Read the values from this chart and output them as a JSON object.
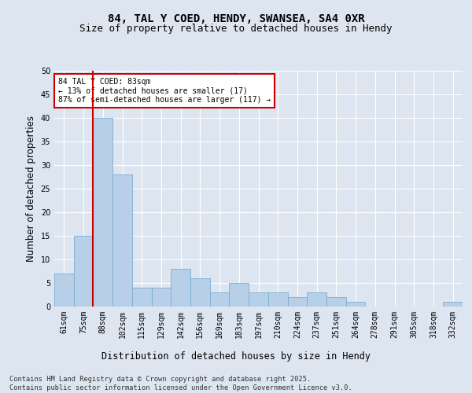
{
  "title_line1": "84, TAL Y COED, HENDY, SWANSEA, SA4 0XR",
  "title_line2": "Size of property relative to detached houses in Hendy",
  "xlabel": "Distribution of detached houses by size in Hendy",
  "ylabel": "Number of detached properties",
  "categories": [
    "61sqm",
    "75sqm",
    "88sqm",
    "102sqm",
    "115sqm",
    "129sqm",
    "142sqm",
    "156sqm",
    "169sqm",
    "183sqm",
    "197sqm",
    "210sqm",
    "224sqm",
    "237sqm",
    "251sqm",
    "264sqm",
    "278sqm",
    "291sqm",
    "305sqm",
    "318sqm",
    "332sqm"
  ],
  "values": [
    7,
    15,
    40,
    28,
    4,
    4,
    8,
    6,
    3,
    5,
    3,
    3,
    2,
    3,
    2,
    1,
    0,
    0,
    0,
    0,
    1
  ],
  "bar_color": "#b8cfe8",
  "bar_edge_color": "#7aadd4",
  "vline_color": "#cc0000",
  "annotation_text": "84 TAL Y COED: 83sqm\n← 13% of detached houses are smaller (17)\n87% of semi-detached houses are larger (117) →",
  "annotation_box_color": "#ffffff",
  "annotation_box_edge": "#cc0000",
  "ylim": [
    0,
    50
  ],
  "yticks": [
    0,
    5,
    10,
    15,
    20,
    25,
    30,
    35,
    40,
    45,
    50
  ],
  "bg_color": "#dde5f0",
  "plot_bg_color": "#dde5f0",
  "footer_text": "Contains HM Land Registry data © Crown copyright and database right 2025.\nContains public sector information licensed under the Open Government Licence v3.0.",
  "title_fontsize": 10,
  "subtitle_fontsize": 9,
  "tick_fontsize": 7,
  "label_fontsize": 8.5
}
